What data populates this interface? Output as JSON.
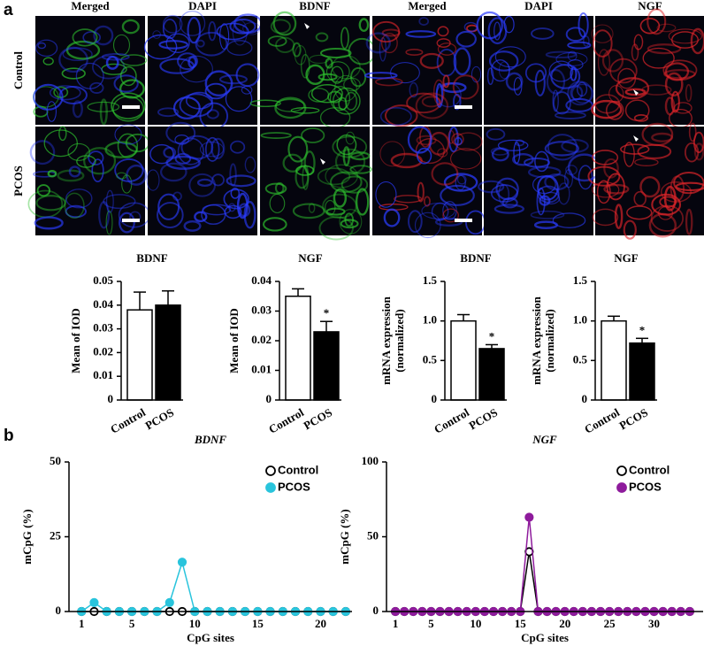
{
  "panel_labels": [
    "a",
    "b"
  ],
  "micrographs": {
    "columns": [
      "Merged",
      "DAPI",
      "BDNF",
      "Merged",
      "DAPI",
      "NGF"
    ],
    "rows": [
      "Control",
      "PCOS"
    ]
  },
  "chart_data": [
    {
      "type": "bar",
      "title": "BDNF",
      "ylabel": [
        "Mean of IOD"
      ],
      "categories": [
        "Control",
        "PCOS"
      ],
      "values": [
        0.038,
        0.04
      ],
      "errors": [
        0.0075,
        0.006
      ],
      "colors": [
        "#ffffff",
        "#000000"
      ],
      "ylim": [
        0,
        0.05
      ],
      "yticks": [
        0,
        0.01,
        0.02,
        0.03,
        0.04,
        0.05
      ]
    },
    {
      "type": "bar",
      "title": "NGF",
      "ylabel": [
        "Mean of IOD"
      ],
      "categories": [
        "Control",
        "PCOS"
      ],
      "values": [
        0.035,
        0.023
      ],
      "errors": [
        0.0025,
        0.0035
      ],
      "colors": [
        "#ffffff",
        "#000000"
      ],
      "ylim": [
        0,
        0.04
      ],
      "yticks": [
        0,
        0.01,
        0.02,
        0.03,
        0.04
      ],
      "annotations": [
        {
          "text": "*",
          "category": "PCOS"
        }
      ]
    },
    {
      "type": "bar",
      "title": "BDNF",
      "ylabel": [
        "mRNA expression",
        "(normalized)"
      ],
      "categories": [
        "Control",
        "PCOS"
      ],
      "values": [
        1.0,
        0.65
      ],
      "errors": [
        0.08,
        0.05
      ],
      "colors": [
        "#ffffff",
        "#000000"
      ],
      "ylim": [
        0,
        1.5
      ],
      "yticks": [
        0,
        0.5,
        {
          "value": 1,
          "label": "1.0"
        },
        1.5
      ],
      "annotations": [
        {
          "text": "*",
          "category": "PCOS"
        }
      ]
    },
    {
      "type": "bar",
      "title": "NGF",
      "ylabel": [
        "mRNA expression",
        "(normalized)"
      ],
      "categories": [
        "Control",
        "PCOS"
      ],
      "values": [
        1.0,
        0.72
      ],
      "errors": [
        0.06,
        0.06
      ],
      "colors": [
        "#ffffff",
        "#000000"
      ],
      "ylim": [
        0,
        1.5
      ],
      "yticks": [
        0,
        0.5,
        {
          "value": 1,
          "label": "1.0"
        },
        1.5
      ],
      "annotations": [
        {
          "text": "*",
          "category": "PCOS"
        }
      ]
    },
    {
      "type": "line",
      "title": "BDNF",
      "xlabel": "CpG sites",
      "ylabel": "mCpG (%)",
      "legend": "upper right",
      "x": [
        1,
        2,
        3,
        4,
        5,
        6,
        7,
        8,
        9,
        10,
        11,
        12,
        13,
        14,
        15,
        16,
        17,
        18,
        19,
        20,
        21,
        22
      ],
      "series": [
        {
          "name": "Control",
          "color": "#ffffff",
          "edgecolor": "#000000",
          "values": [
            0,
            0,
            0,
            0,
            0,
            0,
            0,
            0,
            0,
            0,
            0,
            0,
            0,
            0,
            0,
            0,
            0,
            0,
            0,
            0,
            0,
            0
          ]
        },
        {
          "name": "PCOS",
          "color": "#29c4dc",
          "edgecolor": "#29c4dc",
          "values": [
            0,
            3,
            0,
            0,
            0,
            0,
            0,
            3,
            16.5,
            0,
            0,
            0,
            0,
            0,
            0,
            0,
            0,
            0,
            0,
            0,
            0,
            0
          ]
        }
      ],
      "xlim": [
        0,
        22.5
      ],
      "xticks": [
        1,
        5,
        10,
        15,
        20
      ],
      "ylim": [
        0,
        50
      ],
      "yticks": [
        0,
        25,
        50
      ]
    },
    {
      "type": "line",
      "title": "NGF",
      "xlabel": "CpG sites",
      "ylabel": "mCpG (%)",
      "legend": "upper right",
      "x": [
        1,
        2,
        3,
        4,
        5,
        6,
        7,
        8,
        9,
        10,
        11,
        12,
        13,
        14,
        15,
        16,
        17,
        18,
        19,
        20,
        21,
        22,
        23,
        24,
        25,
        26,
        27,
        28,
        29,
        30,
        31,
        32,
        33,
        34
      ],
      "series": [
        {
          "name": "Control",
          "color": "#ffffff",
          "edgecolor": "#000000",
          "values": [
            0,
            0,
            0,
            0,
            0,
            0,
            0,
            0,
            0,
            0,
            0,
            0,
            0,
            0,
            0,
            40,
            0,
            0,
            0,
            0,
            0,
            0,
            0,
            0,
            0,
            0,
            0,
            0,
            0,
            0,
            0,
            0,
            0,
            0
          ]
        },
        {
          "name": "PCOS",
          "color": "#8e1b9c",
          "edgecolor": "#8e1b9c",
          "values": [
            0,
            0,
            0,
            0,
            0,
            0,
            0,
            0,
            0,
            0,
            0,
            0,
            0,
            0,
            0,
            63,
            0,
            0,
            0,
            0,
            0,
            0,
            0,
            0,
            0,
            0,
            0,
            0,
            0,
            0,
            0,
            0,
            0,
            0
          ]
        }
      ],
      "xlim": [
        0,
        35.5
      ],
      "xticks": [
        1,
        5,
        10,
        15,
        20,
        25,
        30
      ],
      "ylim": [
        0,
        100
      ],
      "yticks": [
        0,
        50,
        100
      ]
    }
  ]
}
